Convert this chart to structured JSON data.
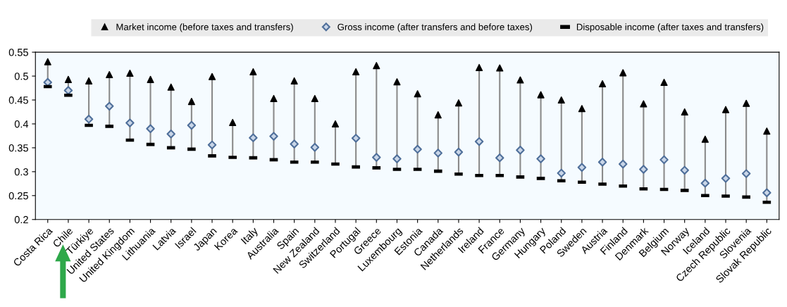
{
  "chart_data": {
    "type": "scatter",
    "categories": [
      "Costa Rica",
      "Chile",
      "Türkiye",
      "United States",
      "United Kingdom",
      "Lithuania",
      "Latvia",
      "Israel",
      "Japan",
      "Korea",
      "Italy",
      "Australia",
      "Spain",
      "New Zealand",
      "Switzerland",
      "Portugal",
      "Greece",
      "Luxembourg",
      "Estonia",
      "Canada",
      "Netherlands",
      "Ireland",
      "France",
      "Germany",
      "Hungary",
      "Poland",
      "Sweden",
      "Austria",
      "Finland",
      "Denmark",
      "Belgium",
      "Norway",
      "Iceland",
      "Czech Republic",
      "Slovenia",
      "Slovak Republic"
    ],
    "series": [
      {
        "name": "Market income (before taxes and transfers)",
        "color": "#000000",
        "marker": "triangle",
        "values": [
          0.53,
          0.493,
          0.49,
          0.503,
          0.506,
          0.493,
          0.477,
          0.447,
          0.499,
          0.403,
          0.509,
          0.453,
          0.49,
          0.453,
          0.4,
          0.509,
          0.522,
          0.488,
          0.463,
          0.419,
          0.444,
          0.518,
          0.517,
          0.492,
          0.461,
          0.45,
          0.432,
          0.484,
          0.507,
          0.442,
          0.487,
          0.425,
          0.368,
          0.43,
          0.443,
          0.385
        ]
      },
      {
        "name": "Gross income (after transfers and before taxes)",
        "color": "#4f6f9a",
        "marker": "diamond",
        "values": [
          0.487,
          0.47,
          0.41,
          0.437,
          0.402,
          0.39,
          0.379,
          0.397,
          0.356,
          null,
          0.371,
          0.374,
          0.358,
          0.351,
          null,
          0.37,
          0.33,
          0.327,
          0.347,
          0.339,
          0.341,
          0.363,
          0.329,
          0.345,
          0.327,
          0.297,
          0.309,
          0.32,
          0.316,
          0.305,
          0.325,
          0.303,
          0.276,
          0.286,
          0.296,
          0.256
        ]
      },
      {
        "name": "Disposable income (after taxes and transfers)",
        "color": "#000000",
        "values": [
          0.478,
          0.46,
          0.397,
          0.395,
          0.366,
          0.357,
          0.35,
          0.347,
          0.333,
          0.33,
          0.329,
          0.325,
          0.32,
          0.32,
          0.316,
          0.31,
          0.308,
          0.305,
          0.305,
          0.301,
          0.295,
          0.292,
          0.292,
          0.289,
          0.286,
          0.281,
          0.278,
          0.274,
          0.27,
          0.264,
          0.263,
          0.261,
          0.25,
          0.249,
          0.247,
          0.236
        ]
      }
    ],
    "ylim": [
      0.2,
      0.55
    ],
    "yticks": [
      0.2,
      0.25,
      0.3,
      0.35,
      0.4,
      0.45,
      0.5,
      0.55
    ],
    "grid": false,
    "legend": "top"
  }
}
